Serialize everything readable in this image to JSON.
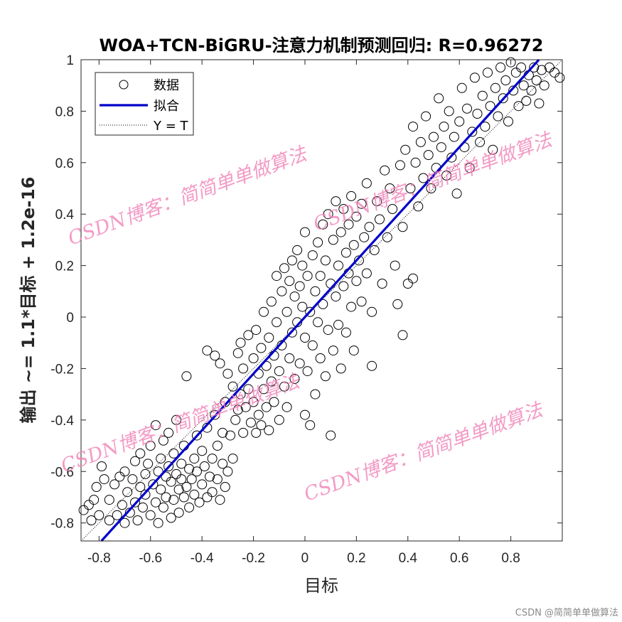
{
  "chart_data": {
    "type": "scatter",
    "title": "WOA+TCN-BiGRU-注意力机制预测回归: R=0.96272",
    "xlabel": "目标",
    "ylabel": "输出 ~= 1.1*目标 + 1.2e-16",
    "xlim": [
      -0.87,
      1.0
    ],
    "ylim": [
      -0.87,
      1.0
    ],
    "xticks": [
      -0.8,
      -0.6,
      -0.4,
      -0.2,
      0,
      0.2,
      0.4,
      0.6,
      0.8
    ],
    "yticks": [
      -0.8,
      -0.6,
      -0.4,
      -0.2,
      0,
      0.2,
      0.4,
      0.6,
      0.8,
      1
    ],
    "xtick_labels": [
      "-0.8",
      "-0.6",
      "-0.4",
      "-0.2",
      "0",
      "0.2",
      "0.4",
      "0.6",
      "0.8"
    ],
    "ytick_labels": [
      "-0.8",
      "-0.6",
      "-0.4",
      "-0.2",
      "0",
      "0.2",
      "0.4",
      "0.6",
      "0.8",
      "1"
    ],
    "grid": false,
    "legend_position": "top-left",
    "legend": [
      {
        "label": "数据",
        "style": "circle",
        "color": "#000000"
      },
      {
        "label": "拟合",
        "style": "solid-line",
        "color": "#0000cc"
      },
      {
        "label": "Y = T",
        "style": "dotted-line",
        "color": "#000000"
      }
    ],
    "fit": {
      "slope": 1.1,
      "intercept": 1.2e-16,
      "color": "#0000cc"
    },
    "reference": {
      "slope": 1,
      "intercept": 0,
      "color": "#000000"
    },
    "series": [
      {
        "marker": "circle",
        "color": "#000000",
        "points": [
          [
            -0.86,
            -0.75
          ],
          [
            -0.84,
            -0.73
          ],
          [
            -0.82,
            -0.71
          ],
          [
            -0.83,
            -0.79
          ],
          [
            -0.81,
            -0.66
          ],
          [
            -0.79,
            -0.58
          ],
          [
            -0.78,
            -0.63
          ],
          [
            -0.8,
            -0.77
          ],
          [
            -0.76,
            -0.71
          ],
          [
            -0.76,
            -0.79
          ],
          [
            -0.74,
            -0.65
          ],
          [
            -0.73,
            -0.77
          ],
          [
            -0.72,
            -0.62
          ],
          [
            -0.71,
            -0.73
          ],
          [
            -0.7,
            -0.6
          ],
          [
            -0.7,
            -0.8
          ],
          [
            -0.69,
            -0.68
          ],
          [
            -0.68,
            -0.76
          ],
          [
            -0.67,
            -0.63
          ],
          [
            -0.66,
            -0.56
          ],
          [
            -0.66,
            -0.72
          ],
          [
            -0.65,
            -0.79
          ],
          [
            -0.64,
            -0.66
          ],
          [
            -0.64,
            -0.53
          ],
          [
            -0.63,
            -0.74
          ],
          [
            -0.62,
            -0.61
          ],
          [
            -0.62,
            -0.69
          ],
          [
            -0.61,
            -0.57
          ],
          [
            -0.6,
            -0.77
          ],
          [
            -0.6,
            -0.5
          ],
          [
            -0.59,
            -0.65
          ],
          [
            -0.58,
            -0.72
          ],
          [
            -0.58,
            -0.42
          ],
          [
            -0.57,
            -0.6
          ],
          [
            -0.57,
            -0.8
          ],
          [
            -0.56,
            -0.67
          ],
          [
            -0.56,
            -0.55
          ],
          [
            -0.55,
            -0.48
          ],
          [
            -0.55,
            -0.74
          ],
          [
            -0.54,
            -0.62
          ],
          [
            -0.54,
            -0.7
          ],
          [
            -0.53,
            -0.58
          ],
          [
            -0.53,
            -0.45
          ],
          [
            -0.52,
            -0.78
          ],
          [
            -0.52,
            -0.64
          ],
          [
            -0.51,
            -0.53
          ],
          [
            -0.51,
            -0.71
          ],
          [
            -0.5,
            -0.61
          ],
          [
            -0.5,
            -0.4
          ],
          [
            -0.49,
            -0.67
          ],
          [
            -0.49,
            -0.76
          ],
          [
            -0.48,
            -0.57
          ],
          [
            -0.48,
            -0.63
          ],
          [
            -0.47,
            -0.7
          ],
          [
            -0.47,
            -0.5
          ],
          [
            -0.46,
            -0.66
          ],
          [
            -0.46,
            -0.23
          ],
          [
            -0.45,
            -0.59
          ],
          [
            -0.45,
            -0.74
          ],
          [
            -0.44,
            -0.63
          ],
          [
            -0.43,
            -0.55
          ],
          [
            -0.43,
            -0.69
          ],
          [
            -0.42,
            -0.46
          ],
          [
            -0.42,
            -0.6
          ],
          [
            -0.41,
            -0.72
          ],
          [
            -0.4,
            -0.65
          ],
          [
            -0.4,
            -0.52
          ],
          [
            -0.39,
            -0.58
          ],
          [
            -0.38,
            -0.7
          ],
          [
            -0.38,
            -0.43
          ],
          [
            -0.37,
            -0.62
          ],
          [
            -0.36,
            -0.55
          ],
          [
            -0.36,
            -0.68
          ],
          [
            -0.35,
            -0.38
          ],
          [
            -0.34,
            -0.5
          ],
          [
            -0.34,
            -0.63
          ],
          [
            -0.33,
            -0.71
          ],
          [
            -0.32,
            -0.45
          ],
          [
            -0.32,
            -0.57
          ],
          [
            -0.31,
            -0.66
          ],
          [
            -0.31,
            -0.33
          ],
          [
            -0.3,
            -0.6
          ],
          [
            -0.38,
            -0.13
          ],
          [
            -0.35,
            -0.15
          ],
          [
            -0.33,
            -0.18
          ],
          [
            -0.3,
            -0.22
          ],
          [
            -0.29,
            -0.46
          ],
          [
            -0.28,
            -0.55
          ],
          [
            -0.28,
            -0.27
          ],
          [
            -0.27,
            -0.4
          ],
          [
            -0.26,
            -0.14
          ],
          [
            -0.26,
            -0.36
          ],
          [
            -0.25,
            -0.1
          ],
          [
            -0.25,
            -0.3
          ],
          [
            -0.24,
            -0.45
          ],
          [
            -0.24,
            -0.2
          ],
          [
            -0.23,
            -0.35
          ],
          [
            -0.22,
            -0.07
          ],
          [
            -0.22,
            -0.28
          ],
          [
            -0.21,
            -0.41
          ],
          [
            -0.2,
            -0.16
          ],
          [
            -0.2,
            -0.33
          ],
          [
            -0.19,
            -0.45
          ],
          [
            -0.19,
            -0.05
          ],
          [
            -0.18,
            -0.22
          ],
          [
            -0.18,
            -0.38
          ],
          [
            -0.17,
            -0.12
          ],
          [
            -0.17,
            -0.42
          ],
          [
            -0.16,
            -0.28
          ],
          [
            -0.16,
            0.02
          ],
          [
            -0.15,
            -0.19
          ],
          [
            -0.15,
            -0.35
          ],
          [
            -0.14,
            -0.08
          ],
          [
            -0.14,
            -0.44
          ],
          [
            -0.13,
            -0.25
          ],
          [
            -0.13,
            0.06
          ],
          [
            -0.12,
            -0.15
          ],
          [
            -0.12,
            -0.33
          ],
          [
            -0.11,
            -0.02
          ],
          [
            -0.11,
            0.16
          ],
          [
            -0.1,
            -0.21
          ],
          [
            -0.1,
            -0.4
          ],
          [
            -0.09,
            0.1
          ],
          [
            -0.09,
            -0.11
          ],
          [
            -0.08,
            0.19
          ],
          [
            -0.08,
            -0.27
          ],
          [
            -0.07,
            0.02
          ],
          [
            -0.07,
            -0.35
          ],
          [
            -0.06,
            0.14
          ],
          [
            -0.06,
            -0.16
          ],
          [
            -0.05,
            0.22
          ],
          [
            -0.05,
            -0.06
          ],
          [
            -0.04,
            0.08
          ],
          [
            -0.04,
            -0.24
          ],
          [
            -0.03,
            0.26
          ],
          [
            -0.03,
            -0.02
          ],
          [
            -0.02,
            0.12
          ],
          [
            -0.02,
            -0.18
          ],
          [
            -0.01,
            0.04
          ],
          [
            -0.01,
            0.2
          ],
          [
            0.0,
            -0.08
          ],
          [
            0.0,
            -0.38
          ],
          [
            0.0,
            0.33
          ],
          [
            0.01,
            0.16
          ],
          [
            0.01,
            -0.21
          ],
          [
            0.02,
            0.02
          ],
          [
            0.02,
            -0.42
          ],
          [
            0.03,
            0.24
          ],
          [
            0.03,
            -0.11
          ],
          [
            0.04,
            0.1
          ],
          [
            0.04,
            -0.3
          ],
          [
            0.05,
            0.29
          ],
          [
            0.05,
            -0.02
          ],
          [
            0.06,
            0.16
          ],
          [
            0.06,
            -0.16
          ],
          [
            0.07,
            0.36
          ],
          [
            0.07,
            0.05
          ],
          [
            0.08,
            -0.23
          ],
          [
            0.08,
            0.22
          ],
          [
            0.09,
            0.4
          ],
          [
            0.09,
            -0.05
          ],
          [
            0.1,
            0.13
          ],
          [
            0.1,
            -0.46
          ],
          [
            0.11,
            0.3
          ],
          [
            0.11,
            -0.13
          ],
          [
            0.12,
            0.08
          ],
          [
            0.12,
            0.45
          ],
          [
            0.13,
            0.2
          ],
          [
            0.13,
            -0.03
          ],
          [
            0.14,
            0.33
          ],
          [
            0.14,
            -0.2
          ],
          [
            0.15,
            0.12
          ],
          [
            0.15,
            0.42
          ],
          [
            0.16,
            0.25
          ],
          [
            0.16,
            -0.06
          ],
          [
            0.17,
            0.17
          ],
          [
            0.17,
            0.36
          ],
          [
            0.18,
            0.04
          ],
          [
            0.18,
            0.47
          ],
          [
            0.19,
            0.28
          ],
          [
            0.19,
            -0.13
          ],
          [
            0.2,
            0.14
          ],
          [
            0.2,
            0.39
          ],
          [
            0.21,
            0.22
          ],
          [
            0.22,
            0.06
          ],
          [
            0.22,
            0.44
          ],
          [
            0.23,
            0.31
          ],
          [
            0.24,
            0.17
          ],
          [
            0.24,
            0.52
          ],
          [
            0.25,
            0.35
          ],
          [
            0.26,
            -0.19
          ],
          [
            0.26,
            0.02
          ],
          [
            0.27,
            0.26
          ],
          [
            0.28,
            0.45
          ],
          [
            0.29,
            0.38
          ],
          [
            0.3,
            0.13
          ],
          [
            0.31,
            0.57
          ],
          [
            0.32,
            0.31
          ],
          [
            0.33,
            0.5
          ],
          [
            0.34,
            0.42
          ],
          [
            0.35,
            0.2
          ],
          [
            0.36,
            0.05
          ],
          [
            0.37,
            0.59
          ],
          [
            0.38,
            0.35
          ],
          [
            0.39,
            0.65
          ],
          [
            0.4,
            0.13
          ],
          [
            0.41,
            0.5
          ],
          [
            0.42,
            0.74
          ],
          [
            0.43,
            0.6
          ],
          [
            0.44,
            0.43
          ],
          [
            0.45,
            0.68
          ],
          [
            0.46,
            0.54
          ],
          [
            0.47,
            0.78
          ],
          [
            0.48,
            0.63
          ],
          [
            0.49,
            0.5
          ],
          [
            0.5,
            0.7
          ],
          [
            0.51,
            0.58
          ],
          [
            0.52,
            0.85
          ],
          [
            0.53,
            0.66
          ],
          [
            0.54,
            0.74
          ],
          [
            0.55,
            0.55
          ],
          [
            0.56,
            0.8
          ],
          [
            0.57,
            0.62
          ],
          [
            0.58,
            0.7
          ],
          [
            0.59,
            0.48
          ],
          [
            0.6,
            0.76
          ],
          [
            0.61,
            0.89
          ],
          [
            0.62,
            0.66
          ],
          [
            0.63,
            0.81
          ],
          [
            0.64,
            0.58
          ],
          [
            0.65,
            0.72
          ],
          [
            0.66,
            0.93
          ],
          [
            0.67,
            0.79
          ],
          [
            0.68,
            0.68
          ],
          [
            0.69,
            0.86
          ],
          [
            0.7,
            0.74
          ],
          [
            0.71,
            0.95
          ],
          [
            0.72,
            0.82
          ],
          [
            0.73,
            0.65
          ],
          [
            0.74,
            0.89
          ],
          [
            0.75,
            0.78
          ],
          [
            0.76,
            0.97
          ],
          [
            0.77,
            0.85
          ],
          [
            0.78,
            0.92
          ],
          [
            0.79,
            0.76
          ],
          [
            0.8,
            0.99
          ],
          [
            0.81,
            0.88
          ],
          [
            0.82,
            0.95
          ],
          [
            0.83,
            0.82
          ],
          [
            0.84,
            0.97
          ],
          [
            0.85,
            0.9
          ],
          [
            0.86,
            0.84
          ],
          [
            0.87,
            0.94
          ],
          [
            0.88,
            0.88
          ],
          [
            0.89,
            0.97
          ],
          [
            0.9,
            0.92
          ],
          [
            0.91,
            0.83
          ],
          [
            0.92,
            0.96
          ],
          [
            0.93,
            0.9
          ],
          [
            0.95,
            0.97
          ],
          [
            0.97,
            0.95
          ],
          [
            0.99,
            0.93
          ],
          [
            0.42,
            0.15
          ],
          [
            0.38,
            -0.07
          ]
        ]
      }
    ]
  },
  "watermarks": [
    {
      "text": "CSDN博客：简简单单做算法"
    },
    {
      "text": "CSDN博客：简简单单做算法"
    },
    {
      "text": "CSDN博客：简简单单做算法"
    },
    {
      "text": "CSDN博客：简简单单做算法"
    }
  ],
  "footer": {
    "text": "CSDN @简简单单做算法"
  }
}
